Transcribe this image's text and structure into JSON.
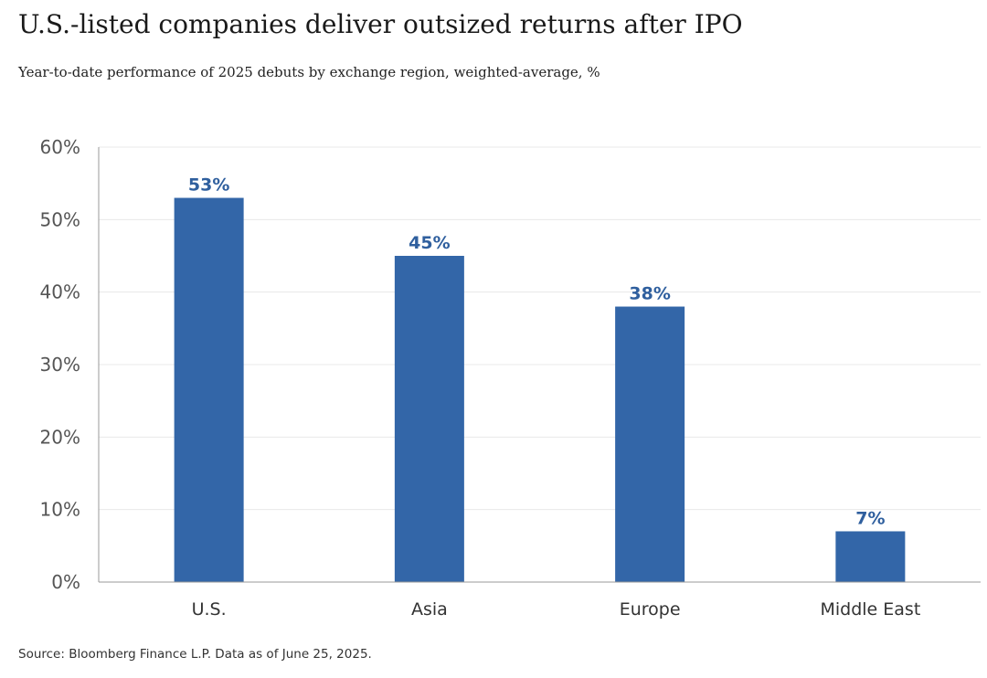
{
  "header": {
    "title": "U.S.-listed companies deliver outsized returns after IPO",
    "subtitle": "Year-to-date performance of 2025 debuts by exchange region, weighted-average, %"
  },
  "footer": {
    "source": "Source: Bloomberg Finance L.P. Data as of June 25, 2025."
  },
  "chart_data": {
    "type": "bar",
    "title": "U.S.-listed companies deliver outsized returns after IPO",
    "subtitle": "Year-to-date performance of 2025 debuts by exchange region, weighted-average, %",
    "categories": [
      "U.S.",
      "Asia",
      "Europe",
      "Middle East"
    ],
    "values": [
      53,
      45,
      38,
      7
    ],
    "data_labels": [
      "53%",
      "45%",
      "38%",
      "7%"
    ],
    "y_ticks": [
      0,
      10,
      20,
      30,
      40,
      50,
      60
    ],
    "y_tick_labels": [
      "0%",
      "10%",
      "20%",
      "30%",
      "40%",
      "50%",
      "60%"
    ],
    "ylim": [
      0,
      60
    ],
    "xlabel": "",
    "ylabel": "",
    "grid": true,
    "legend": "none",
    "bar_color": "#3366a8",
    "label_color": "#2f5f9e",
    "grid_color": "#e8e8e8",
    "axis_color": "#999999"
  }
}
